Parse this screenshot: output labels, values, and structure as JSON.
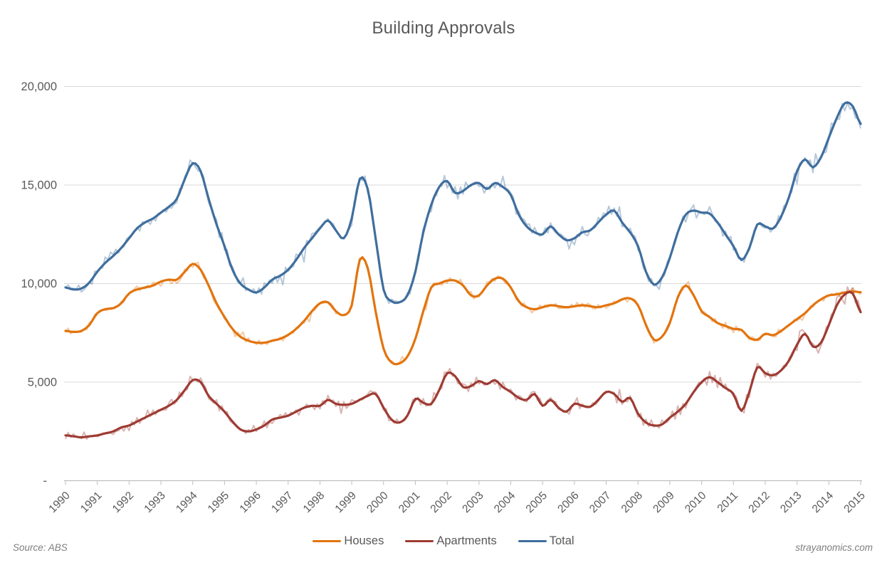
{
  "title": "Building Approvals",
  "source_note": "Source: ABS",
  "watermark": "strayanomics.com",
  "styling": {
    "title_color": "#595959",
    "label_color": "#595959",
    "gridline_color": "#d9d9d9",
    "axis_line_color": "#bfbfbf",
    "background": "#ffffff"
  },
  "chart_data": {
    "type": "line",
    "title": "Building Approvals",
    "xlabel": "",
    "ylabel": "",
    "grid": "horizontal",
    "legend_position": "bottom",
    "x_start": 1990,
    "x_end": 2015,
    "x_step_years": 0.25,
    "x_tick_labels": [
      "1990",
      "1991",
      "1992",
      "1993",
      "1994",
      "1995",
      "1996",
      "1997",
      "1998",
      "1999",
      "2000",
      "2001",
      "2002",
      "2003",
      "2004",
      "2005",
      "2006",
      "2007",
      "2008",
      "2009",
      "2010",
      "2011",
      "2012",
      "2013",
      "2014",
      "2015"
    ],
    "y_ticks": [
      {
        "value": 0,
        "label": "-"
      },
      {
        "value": 5000,
        "label": "5,000"
      },
      {
        "value": 10000,
        "label": "10,000"
      },
      {
        "value": 15000,
        "label": "15,000"
      },
      {
        "value": 20000,
        "label": "20,000"
      }
    ],
    "ylim": [
      0,
      20500
    ],
    "series": [
      {
        "name": "Houses",
        "color": "#E2740E",
        "description": "trend line with lighter raw monthly line behind",
        "values": [
          7600,
          7550,
          7600,
          7900,
          8500,
          8700,
          8750,
          9000,
          9500,
          9700,
          9800,
          9900,
          10100,
          10200,
          10200,
          10600,
          11000,
          10700,
          9900,
          9000,
          8300,
          7700,
          7300,
          7100,
          7000,
          7000,
          7100,
          7200,
          7400,
          7700,
          8100,
          8600,
          9000,
          9050,
          8600,
          8400,
          8900,
          11200,
          10800,
          8600,
          6700,
          6000,
          5950,
          6300,
          7200,
          8600,
          9800,
          10000,
          10150,
          10150,
          9900,
          9400,
          9400,
          9900,
          10250,
          10250,
          9800,
          9100,
          8800,
          8700,
          8800,
          8900,
          8850,
          8800,
          8850,
          8900,
          8850,
          8800,
          8900,
          9000,
          9200,
          9250,
          8900,
          7900,
          7150,
          7300,
          8000,
          9300,
          9900,
          9400,
          8600,
          8300,
          8000,
          7850,
          7700,
          7650,
          7250,
          7150,
          7450,
          7380,
          7600,
          7900,
          8200,
          8500,
          8900,
          9200,
          9400,
          9450,
          9550,
          9600,
          9560
        ]
      },
      {
        "name": "Apartments",
        "color": "#9E3B33",
        "description": "trend line with lighter raw monthly line behind",
        "values": [
          2300,
          2250,
          2200,
          2250,
          2300,
          2400,
          2500,
          2700,
          2800,
          3000,
          3200,
          3400,
          3600,
          3800,
          4100,
          4600,
          5100,
          5000,
          4300,
          3900,
          3500,
          3000,
          2600,
          2500,
          2600,
          2800,
          3100,
          3200,
          3300,
          3500,
          3700,
          3800,
          3800,
          4100,
          3900,
          3850,
          3900,
          4100,
          4300,
          4400,
          3700,
          3100,
          2950,
          3300,
          4150,
          3950,
          3900,
          4600,
          5450,
          5300,
          4750,
          4800,
          5050,
          4900,
          5100,
          4750,
          4500,
          4200,
          4100,
          4400,
          3800,
          4100,
          3700,
          3500,
          3900,
          3800,
          3750,
          4100,
          4500,
          4400,
          4000,
          4200,
          3400,
          2950,
          2800,
          2850,
          3200,
          3500,
          3900,
          4500,
          5000,
          5250,
          5000,
          4700,
          4400,
          3550,
          4500,
          5750,
          5450,
          5350,
          5600,
          6100,
          6900,
          7450,
          6800,
          7000,
          7900,
          8900,
          9450,
          9500,
          8550
        ]
      },
      {
        "name": "Total",
        "color": "#3F6E9E",
        "description": "trend line with lighter raw monthly line behind",
        "values": [
          9800,
          9700,
          9750,
          10050,
          10600,
          11050,
          11400,
          11800,
          12300,
          12800,
          13100,
          13300,
          13600,
          13900,
          14300,
          15300,
          16100,
          15700,
          14300,
          13000,
          11900,
          10700,
          10000,
          9700,
          9550,
          9800,
          10200,
          10400,
          10700,
          11200,
          11800,
          12300,
          12800,
          13200,
          12700,
          12300,
          13300,
          15300,
          14800,
          12300,
          9700,
          9100,
          9050,
          9400,
          10600,
          12600,
          14000,
          14900,
          15200,
          14600,
          14700,
          15000,
          15100,
          14800,
          15100,
          14900,
          14500,
          13500,
          12900,
          12600,
          12500,
          12900,
          12500,
          12200,
          12300,
          12600,
          12700,
          13100,
          13500,
          13700,
          13100,
          12600,
          11900,
          10600,
          9950,
          10300,
          11300,
          12600,
          13500,
          13700,
          13600,
          13550,
          13100,
          12500,
          11900,
          11200,
          11800,
          13000,
          12900,
          12800,
          13400,
          14400,
          15700,
          16300,
          15900,
          16400,
          17400,
          18400,
          19150,
          19000,
          18100
        ]
      }
    ],
    "raw_line": {
      "opacity": 0.38,
      "stroke_width": 2,
      "noise_seed": 20150131,
      "noise_amp": {
        "Houses": 235,
        "Apartments": 385,
        "Total": 430
      },
      "noise_ref_level": {
        "Houses": 10000,
        "Apartments": 5500,
        "Total": 16000
      }
    },
    "legend": [
      {
        "label": "Houses"
      },
      {
        "label": "Apartments"
      },
      {
        "label": "Total"
      }
    ]
  }
}
